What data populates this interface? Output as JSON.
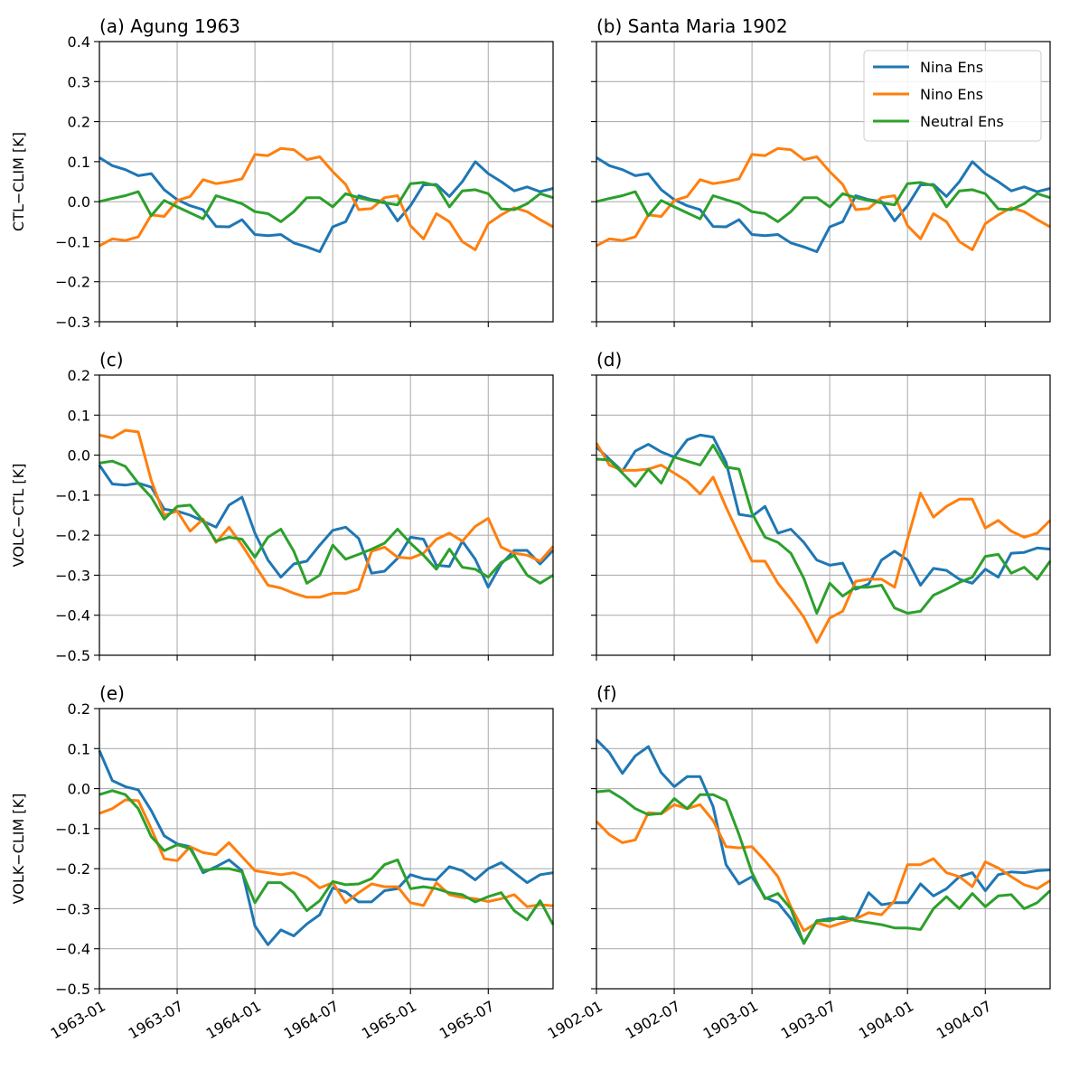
{
  "colors": {
    "nina": "#1f77b4",
    "nino": "#ff7f0e",
    "neutral": "#2ca02c"
  },
  "chart_data": [
    {
      "type": "line",
      "title": "(a) Agung 1963",
      "ylabel": "CTL−CLIM [K]",
      "ylim": [
        -0.3,
        0.4
      ],
      "yticks": [
        -0.3,
        -0.2,
        -0.1,
        0.0,
        0.1,
        0.2,
        0.3,
        0.4
      ],
      "ytick_labels": [
        "−0.3",
        "−0.2",
        "−0.1",
        "0.0",
        "0.1",
        "0.2",
        "0.3",
        "0.4"
      ],
      "xticks": [
        "1963-01",
        "1963-07",
        "1964-01",
        "1964-07",
        "1965-01",
        "1965-07"
      ],
      "xtick_labels": [],
      "x_start": "1963-01",
      "x_end": "1965-12",
      "series": [
        {
          "name": "Nina Ens",
          "color_key": "nina",
          "values": [
            0.11,
            0.09,
            0.08,
            0.065,
            0.07,
            0.03,
            0.005,
            -0.01,
            -0.02,
            -0.062,
            -0.063,
            -0.045,
            -0.082,
            -0.085,
            -0.082,
            -0.103,
            -0.113,
            -0.125,
            -0.063,
            -0.05,
            0.015,
            0.005,
            0.0,
            -0.048,
            -0.01,
            0.042,
            0.043,
            0.013,
            0.05,
            0.1,
            0.07,
            0.05,
            0.027,
            0.037,
            0.025,
            0.033
          ]
        },
        {
          "name": "Nino Ens",
          "color_key": "nino",
          "values": [
            -0.11,
            -0.093,
            -0.097,
            -0.088,
            -0.033,
            -0.037,
            0.003,
            0.013,
            0.055,
            0.045,
            0.05,
            0.057,
            0.118,
            0.115,
            0.133,
            0.13,
            0.105,
            0.112,
            0.075,
            0.043,
            -0.02,
            -0.017,
            0.01,
            0.015,
            -0.06,
            -0.093,
            -0.03,
            -0.05,
            -0.1,
            -0.12,
            -0.055,
            -0.033,
            -0.015,
            -0.025,
            -0.045,
            -0.063
          ]
        },
        {
          "name": "Neutral Ens",
          "color_key": "neutral",
          "values": [
            0.0,
            0.008,
            0.015,
            0.025,
            -0.035,
            0.003,
            -0.013,
            -0.028,
            -0.043,
            0.015,
            0.005,
            -0.005,
            -0.025,
            -0.03,
            -0.05,
            -0.025,
            0.01,
            0.01,
            -0.013,
            0.02,
            0.01,
            0.003,
            -0.003,
            -0.008,
            0.045,
            0.048,
            0.04,
            -0.013,
            0.027,
            0.03,
            0.02,
            -0.018,
            -0.02,
            -0.005,
            0.02,
            0.01
          ]
        }
      ]
    },
    {
      "type": "line",
      "title": "(b) Santa Maria 1902",
      "ylabel": "",
      "ylim": [
        -0.3,
        0.4
      ],
      "yticks": [
        -0.3,
        -0.2,
        -0.1,
        0.0,
        0.1,
        0.2,
        0.3,
        0.4
      ],
      "ytick_labels": [],
      "xticks": [
        "1902-01",
        "1902-07",
        "1903-01",
        "1903-07",
        "1904-01",
        "1904-07"
      ],
      "xtick_labels": [],
      "x_start": "1902-01",
      "x_end": "1904-12",
      "legend": {
        "placement": "upper right",
        "entries": [
          "Nina Ens",
          "Nino Ens",
          "Neutral Ens"
        ]
      },
      "series": [
        {
          "name": "Nina Ens",
          "color_key": "nina",
          "values": [
            0.11,
            0.09,
            0.08,
            0.065,
            0.07,
            0.03,
            0.005,
            -0.01,
            -0.02,
            -0.062,
            -0.063,
            -0.045,
            -0.082,
            -0.085,
            -0.082,
            -0.103,
            -0.113,
            -0.125,
            -0.063,
            -0.05,
            0.015,
            0.005,
            0.0,
            -0.048,
            -0.01,
            0.042,
            0.043,
            0.013,
            0.05,
            0.1,
            0.07,
            0.05,
            0.027,
            0.037,
            0.025,
            0.033
          ]
        },
        {
          "name": "Nino Ens",
          "color_key": "nino",
          "values": [
            -0.11,
            -0.093,
            -0.097,
            -0.088,
            -0.033,
            -0.037,
            0.003,
            0.013,
            0.055,
            0.045,
            0.05,
            0.057,
            0.118,
            0.115,
            0.133,
            0.13,
            0.105,
            0.112,
            0.075,
            0.043,
            -0.02,
            -0.017,
            0.01,
            0.015,
            -0.06,
            -0.093,
            -0.03,
            -0.05,
            -0.1,
            -0.12,
            -0.055,
            -0.033,
            -0.015,
            -0.025,
            -0.045,
            -0.063
          ]
        },
        {
          "name": "Neutral Ens",
          "color_key": "neutral",
          "values": [
            0.0,
            0.008,
            0.015,
            0.025,
            -0.035,
            0.003,
            -0.013,
            -0.028,
            -0.043,
            0.015,
            0.005,
            -0.005,
            -0.025,
            -0.03,
            -0.05,
            -0.025,
            0.01,
            0.01,
            -0.013,
            0.02,
            0.01,
            0.003,
            -0.003,
            -0.008,
            0.045,
            0.048,
            0.04,
            -0.013,
            0.027,
            0.03,
            0.02,
            -0.018,
            -0.02,
            -0.005,
            0.02,
            0.01
          ]
        }
      ]
    },
    {
      "type": "line",
      "title": "(c)",
      "ylabel": "VOLC−CTL [K]",
      "ylim": [
        -0.5,
        0.2
      ],
      "yticks": [
        -0.5,
        -0.4,
        -0.3,
        -0.2,
        -0.1,
        0.0,
        0.1,
        0.2
      ],
      "ytick_labels": [
        "−0.5",
        "−0.4",
        "−0.3",
        "−0.2",
        "−0.1",
        "0.0",
        "0.1",
        "0.2"
      ],
      "xticks": [
        "1963-01",
        "1963-07",
        "1964-01",
        "1964-07",
        "1965-01",
        "1965-07"
      ],
      "xtick_labels": [],
      "x_start": "1963-01",
      "x_end": "1965-12",
      "series": [
        {
          "name": "Nina Ens",
          "color_key": "nina",
          "values": [
            -0.025,
            -0.072,
            -0.075,
            -0.07,
            -0.08,
            -0.135,
            -0.14,
            -0.15,
            -0.165,
            -0.18,
            -0.125,
            -0.105,
            -0.195,
            -0.262,
            -0.305,
            -0.272,
            -0.265,
            -0.225,
            -0.188,
            -0.18,
            -0.208,
            -0.295,
            -0.29,
            -0.258,
            -0.205,
            -0.21,
            -0.275,
            -0.278,
            -0.215,
            -0.26,
            -0.33,
            -0.272,
            -0.238,
            -0.238,
            -0.272,
            -0.238
          ]
        },
        {
          "name": "Nino Ens",
          "color_key": "nino",
          "values": [
            0.05,
            0.043,
            0.062,
            0.058,
            -0.063,
            -0.15,
            -0.14,
            -0.19,
            -0.16,
            -0.218,
            -0.18,
            -0.225,
            -0.275,
            -0.325,
            -0.332,
            -0.345,
            -0.355,
            -0.355,
            -0.345,
            -0.345,
            -0.335,
            -0.24,
            -0.23,
            -0.255,
            -0.258,
            -0.245,
            -0.21,
            -0.195,
            -0.215,
            -0.178,
            -0.158,
            -0.23,
            -0.245,
            -0.25,
            -0.265,
            -0.228
          ]
        },
        {
          "name": "Neutral Ens",
          "color_key": "neutral",
          "values": [
            -0.02,
            -0.015,
            -0.028,
            -0.07,
            -0.105,
            -0.16,
            -0.128,
            -0.125,
            -0.165,
            -0.215,
            -0.205,
            -0.21,
            -0.255,
            -0.205,
            -0.185,
            -0.24,
            -0.32,
            -0.3,
            -0.225,
            -0.26,
            -0.248,
            -0.235,
            -0.22,
            -0.185,
            -0.22,
            -0.25,
            -0.285,
            -0.235,
            -0.28,
            -0.285,
            -0.305,
            -0.268,
            -0.25,
            -0.3,
            -0.32,
            -0.3
          ]
        }
      ]
    },
    {
      "type": "line",
      "title": "(d)",
      "ylabel": "",
      "ylim": [
        -0.5,
        0.2
      ],
      "yticks": [
        -0.5,
        -0.4,
        -0.3,
        -0.2,
        -0.1,
        0.0,
        0.1,
        0.2
      ],
      "ytick_labels": [],
      "xticks": [
        "1902-01",
        "1902-07",
        "1903-01",
        "1903-07",
        "1904-01",
        "1904-07"
      ],
      "xtick_labels": [],
      "x_start": "1902-01",
      "x_end": "1904-12",
      "series": [
        {
          "name": "Nina Ens",
          "color_key": "nina",
          "values": [
            0.02,
            -0.01,
            -0.04,
            0.01,
            0.027,
            0.008,
            -0.005,
            0.038,
            0.05,
            0.045,
            -0.018,
            -0.148,
            -0.153,
            -0.128,
            -0.195,
            -0.185,
            -0.218,
            -0.262,
            -0.275,
            -0.27,
            -0.335,
            -0.322,
            -0.262,
            -0.24,
            -0.262,
            -0.325,
            -0.283,
            -0.288,
            -0.31,
            -0.32,
            -0.285,
            -0.305,
            -0.245,
            -0.243,
            -0.232,
            -0.235
          ]
        },
        {
          "name": "Nino Ens",
          "color_key": "nino",
          "values": [
            0.03,
            -0.025,
            -0.038,
            -0.038,
            -0.035,
            -0.025,
            -0.045,
            -0.065,
            -0.097,
            -0.055,
            -0.13,
            -0.2,
            -0.265,
            -0.265,
            -0.32,
            -0.36,
            -0.405,
            -0.468,
            -0.407,
            -0.39,
            -0.315,
            -0.31,
            -0.31,
            -0.33,
            -0.21,
            -0.095,
            -0.155,
            -0.128,
            -0.11,
            -0.11,
            -0.182,
            -0.163,
            -0.19,
            -0.205,
            -0.195,
            -0.163
          ]
        },
        {
          "name": "Neutral Ens",
          "color_key": "neutral",
          "values": [
            -0.01,
            -0.012,
            -0.045,
            -0.078,
            -0.035,
            -0.07,
            -0.005,
            -0.015,
            -0.025,
            0.025,
            -0.03,
            -0.035,
            -0.145,
            -0.205,
            -0.218,
            -0.245,
            -0.308,
            -0.395,
            -0.32,
            -0.352,
            -0.33,
            -0.33,
            -0.325,
            -0.382,
            -0.395,
            -0.39,
            -0.35,
            -0.335,
            -0.318,
            -0.305,
            -0.253,
            -0.248,
            -0.295,
            -0.28,
            -0.31,
            -0.265
          ]
        }
      ]
    },
    {
      "type": "line",
      "title": "(e)",
      "ylabel": "VOLK−CLIM [K]",
      "ylim": [
        -0.5,
        0.2
      ],
      "yticks": [
        -0.5,
        -0.4,
        -0.3,
        -0.2,
        -0.1,
        0.0,
        0.1,
        0.2
      ],
      "ytick_labels": [
        "−0.5",
        "−0.4",
        "−0.3",
        "−0.2",
        "−0.1",
        "0.0",
        "0.1",
        "0.2"
      ],
      "xticks": [
        "1963-01",
        "1963-07",
        "1964-01",
        "1964-07",
        "1965-01",
        "1965-07"
      ],
      "xtick_labels": [
        "1963-01",
        "1963-07",
        "1964-01",
        "1964-07",
        "1965-01",
        "1965-07"
      ],
      "x_start": "1963-01",
      "x_end": "1965-12",
      "series": [
        {
          "name": "Nina Ens",
          "color_key": "nina",
          "values": [
            0.095,
            0.02,
            0.005,
            -0.003,
            -0.055,
            -0.118,
            -0.138,
            -0.145,
            -0.21,
            -0.195,
            -0.178,
            -0.205,
            -0.343,
            -0.39,
            -0.353,
            -0.368,
            -0.338,
            -0.315,
            -0.248,
            -0.258,
            -0.283,
            -0.283,
            -0.255,
            -0.25,
            -0.215,
            -0.225,
            -0.228,
            -0.195,
            -0.205,
            -0.228,
            -0.2,
            -0.185,
            -0.21,
            -0.235,
            -0.215,
            -0.21
          ]
        },
        {
          "name": "Nino Ens",
          "color_key": "nino",
          "values": [
            -0.062,
            -0.05,
            -0.028,
            -0.03,
            -0.1,
            -0.175,
            -0.18,
            -0.145,
            -0.16,
            -0.165,
            -0.135,
            -0.17,
            -0.205,
            -0.21,
            -0.215,
            -0.21,
            -0.222,
            -0.248,
            -0.235,
            -0.285,
            -0.26,
            -0.238,
            -0.245,
            -0.245,
            -0.285,
            -0.292,
            -0.235,
            -0.265,
            -0.272,
            -0.275,
            -0.282,
            -0.275,
            -0.265,
            -0.295,
            -0.29,
            -0.293
          ]
        },
        {
          "name": "Neutral Ens",
          "color_key": "neutral",
          "values": [
            -0.015,
            -0.005,
            -0.015,
            -0.05,
            -0.12,
            -0.155,
            -0.14,
            -0.15,
            -0.205,
            -0.2,
            -0.2,
            -0.208,
            -0.285,
            -0.235,
            -0.235,
            -0.26,
            -0.305,
            -0.28,
            -0.232,
            -0.24,
            -0.238,
            -0.225,
            -0.19,
            -0.178,
            -0.25,
            -0.245,
            -0.25,
            -0.26,
            -0.265,
            -0.283,
            -0.27,
            -0.26,
            -0.305,
            -0.328,
            -0.28,
            -0.34
          ]
        }
      ]
    },
    {
      "type": "line",
      "title": "(f)",
      "ylabel": "",
      "ylim": [
        -0.5,
        0.2
      ],
      "yticks": [
        -0.5,
        -0.4,
        -0.3,
        -0.2,
        -0.1,
        0.0,
        0.1,
        0.2
      ],
      "ytick_labels": [],
      "xticks": [
        "1902-01",
        "1902-07",
        "1903-01",
        "1903-07",
        "1904-01",
        "1904-07"
      ],
      "xtick_labels": [
        "1902-01",
        "1902-07",
        "1903-01",
        "1903-07",
        "1904-01",
        "1904-07"
      ],
      "x_start": "1902-01",
      "x_end": "1904-12",
      "series": [
        {
          "name": "Nina Ens",
          "color_key": "nina",
          "values": [
            0.122,
            0.09,
            0.038,
            0.082,
            0.105,
            0.04,
            0.005,
            0.03,
            0.03,
            -0.045,
            -0.19,
            -0.238,
            -0.22,
            -0.272,
            -0.285,
            -0.325,
            -0.385,
            -0.33,
            -0.325,
            -0.325,
            -0.325,
            -0.26,
            -0.29,
            -0.285,
            -0.285,
            -0.238,
            -0.268,
            -0.25,
            -0.22,
            -0.21,
            -0.255,
            -0.215,
            -0.208,
            -0.21,
            -0.205,
            -0.203
          ]
        },
        {
          "name": "Nino Ens",
          "color_key": "nino",
          "values": [
            -0.082,
            -0.115,
            -0.135,
            -0.128,
            -0.06,
            -0.063,
            -0.04,
            -0.05,
            -0.04,
            -0.08,
            -0.145,
            -0.148,
            -0.145,
            -0.18,
            -0.22,
            -0.295,
            -0.355,
            -0.335,
            -0.345,
            -0.335,
            -0.325,
            -0.31,
            -0.315,
            -0.28,
            -0.19,
            -0.19,
            -0.175,
            -0.21,
            -0.22,
            -0.245,
            -0.183,
            -0.198,
            -0.22,
            -0.24,
            -0.25,
            -0.23
          ]
        },
        {
          "name": "Neutral Ens",
          "color_key": "neutral",
          "values": [
            -0.008,
            -0.005,
            -0.025,
            -0.05,
            -0.065,
            -0.062,
            -0.025,
            -0.05,
            -0.015,
            -0.015,
            -0.03,
            -0.115,
            -0.21,
            -0.275,
            -0.262,
            -0.3,
            -0.387,
            -0.33,
            -0.33,
            -0.32,
            -0.33,
            -0.335,
            -0.34,
            -0.348,
            -0.348,
            -0.352,
            -0.3,
            -0.27,
            -0.3,
            -0.262,
            -0.295,
            -0.268,
            -0.265,
            -0.3,
            -0.285,
            -0.255
          ]
        }
      ]
    }
  ]
}
